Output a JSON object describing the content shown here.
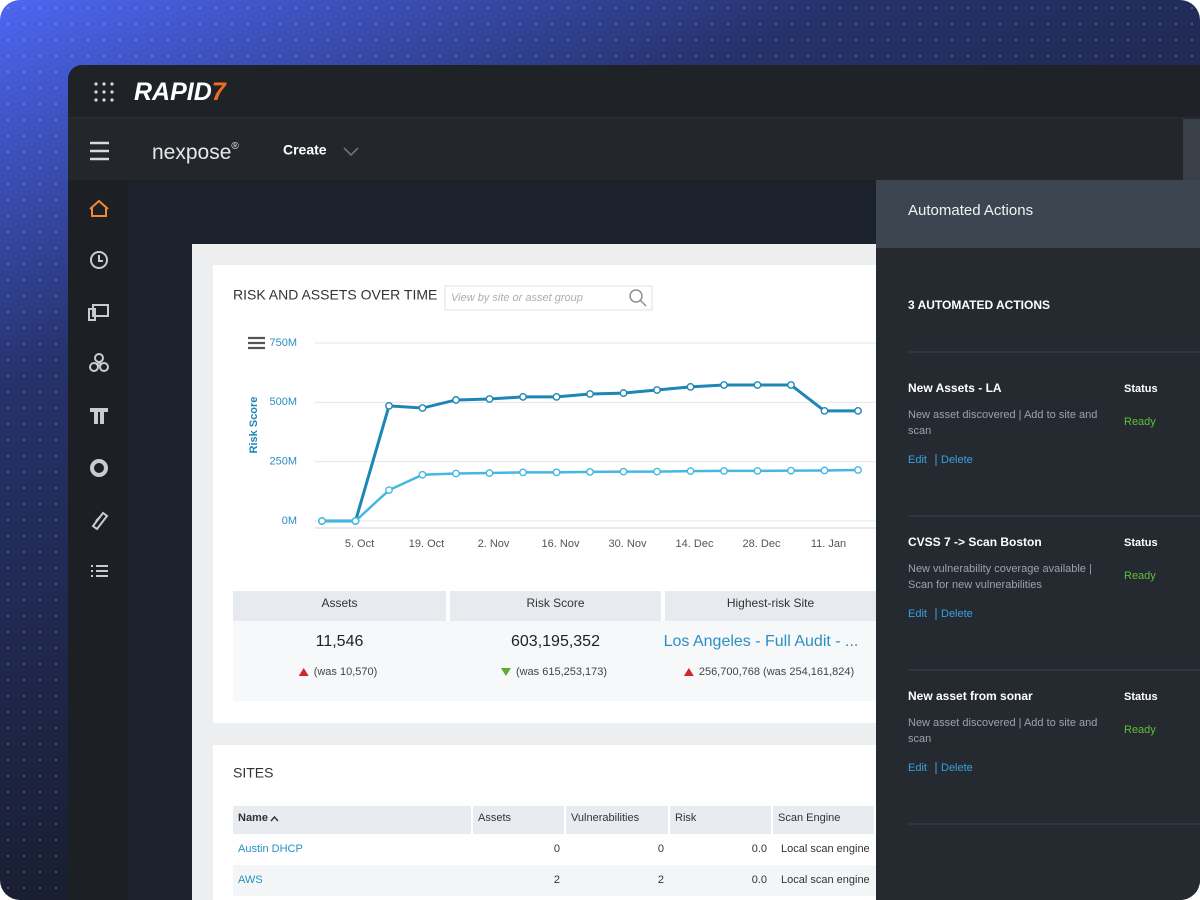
{
  "header": {
    "brand": "RAPID",
    "brand_mark": "7"
  },
  "nav": {
    "product": "nexpose",
    "product_mark": "®",
    "menu": "Create"
  },
  "risk_card": {
    "search_placeholder": "View by site or asset group"
  },
  "chart_data": {
    "type": "line",
    "title": "RISK AND ASSETS OVER TIME",
    "y_label": "Risk Score",
    "categories": [
      null,
      "5. Oct",
      null,
      "19. Oct",
      null,
      "2. Nov",
      null,
      "16. Nov",
      null,
      "30. Nov",
      null,
      "14. Dec",
      null,
      "28. Dec",
      null,
      "11. Jan",
      null
    ],
    "series": [
      {
        "color": "#1d86b5",
        "values": [
          0,
          0,
          485,
          476,
          510,
          514,
          523,
          523,
          535,
          539,
          552,
          565,
          573,
          573,
          573,
          464,
          464
        ]
      },
      {
        "color": "#45b8e2",
        "values": [
          0,
          0,
          130,
          195,
          200,
          202,
          205,
          205,
          207,
          208,
          208,
          210,
          211,
          211,
          212,
          213,
          215
        ]
      }
    ],
    "ylim": [
      0,
      750
    ],
    "yticks": [
      {
        "value": 0,
        "label": "0M"
      },
      {
        "value": 250,
        "label": "250M"
      },
      {
        "value": 500,
        "label": "500M"
      },
      {
        "value": 750,
        "label": "750M"
      }
    ],
    "grid": true
  },
  "stats": {
    "headers": [
      "Assets",
      "Risk Score",
      "Highest-risk Site"
    ],
    "values": [
      "11,546",
      "603,195,352",
      "Los Angeles - Full Audit - ..."
    ],
    "changes": [
      {
        "text": "(was 10,570)",
        "trend": "up"
      },
      {
        "text": "(was 615,253,173)",
        "trend": "down"
      },
      {
        "text": "256,700,768 (was 254,161,824)",
        "trend": "up"
      }
    ]
  },
  "sites": {
    "title": "SITES",
    "columns": [
      "Name",
      "Assets",
      "Vulnerabilities",
      "Risk",
      "Scan Engine"
    ],
    "rows": [
      [
        "Austin DHCP",
        "0",
        "0",
        "0.0",
        "Local scan engine"
      ],
      [
        "AWS",
        "2",
        "2",
        "0.0",
        "Local scan engine"
      ]
    ]
  },
  "actions_panel": {
    "title": "Automated Actions",
    "count_label": "3 AUTOMATED ACTIONS",
    "actions": [
      {
        "name": "New Assets - LA",
        "status_label": "Status",
        "description": [
          "New asset discovered | Add to site and",
          "scan"
        ],
        "status": "Ready",
        "edit": "Edit",
        "delete": "Delete"
      },
      {
        "name": "CVSS 7 -> Scan Boston",
        "status_label": "Status",
        "description": [
          "New vulnerability coverage available |",
          "Scan for new vulnerabilities"
        ],
        "status": "Ready",
        "edit": "Edit",
        "delete": "Delete"
      },
      {
        "name": "New asset from sonar",
        "status_label": "Status",
        "description": [
          "New asset discovered | Add to site and",
          "scan"
        ],
        "status": "Ready",
        "edit": "Edit",
        "delete": "Delete"
      }
    ]
  }
}
